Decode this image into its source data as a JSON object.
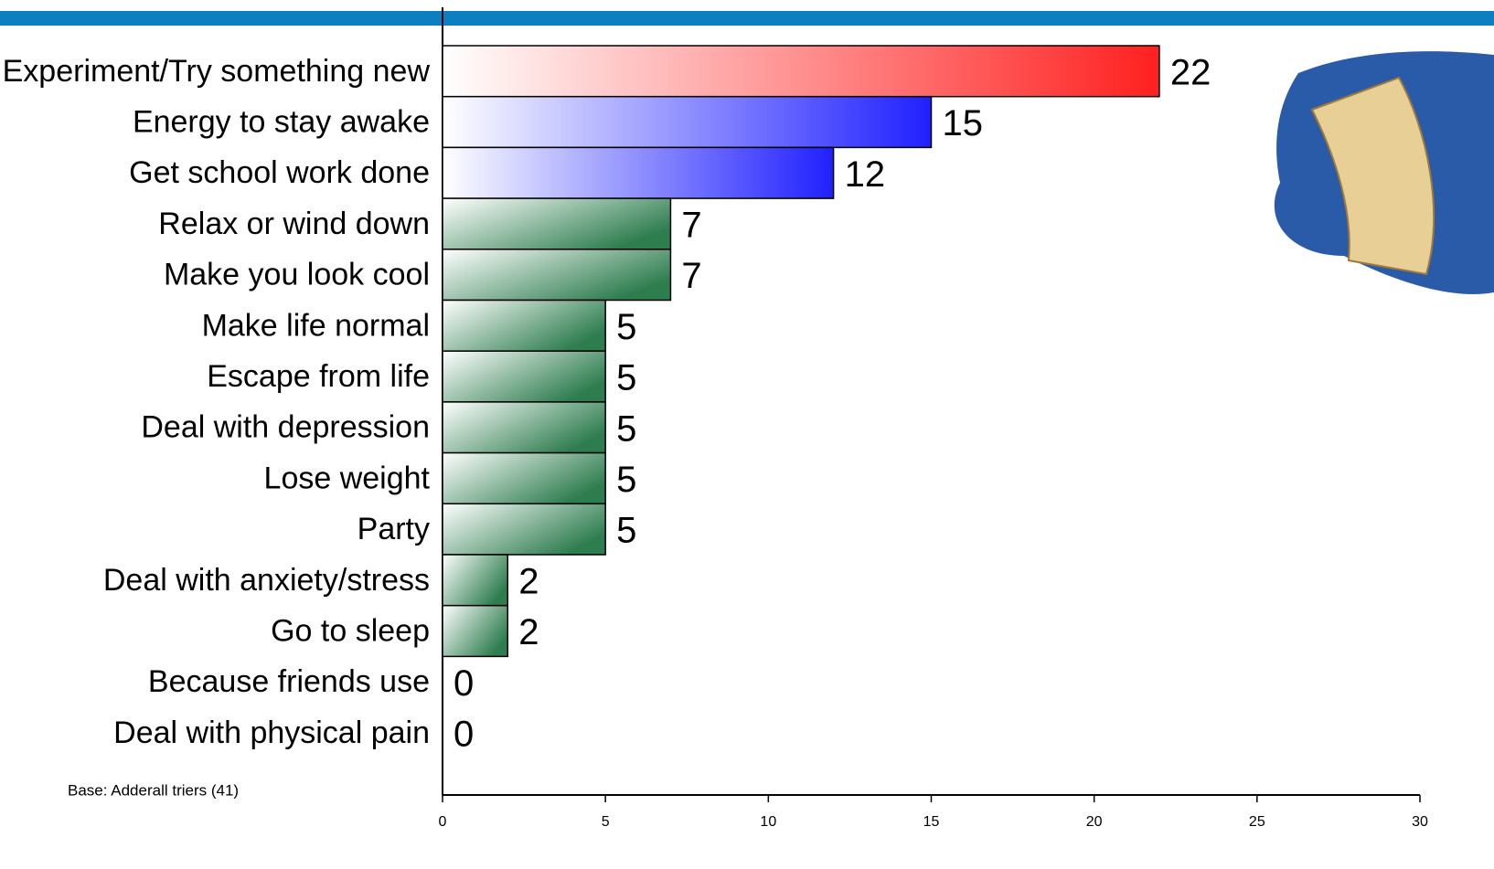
{
  "chart_data": {
    "type": "hbar",
    "categories": [
      "Experiment/Try something new",
      "Energy to stay awake",
      "Get school work done",
      "Relax or wind down",
      "Make you look cool",
      "Make life normal",
      "Escape from life",
      "Deal with depression",
      "Lose weight",
      "Party",
      "Deal with anxiety/stress",
      "Go to sleep",
      "Because friends use",
      "Deal with physical pain"
    ],
    "values": [
      22,
      15,
      12,
      7,
      7,
      5,
      5,
      5,
      5,
      5,
      2,
      2,
      0,
      0
    ],
    "colors": [
      "#ff2020",
      "#2020ff",
      "#2020ff",
      "#2e7d4f",
      "#2e7d4f",
      "#2e7d4f",
      "#2e7d4f",
      "#2e7d4f",
      "#2e7d4f",
      "#2e7d4f",
      "#2e7d4f",
      "#2e7d4f",
      "#2e7d4f",
      "#2e7d4f"
    ],
    "xlim": [
      0,
      30
    ],
    "xticks": [
      0,
      5,
      10,
      15,
      20,
      25,
      30
    ],
    "annotation": "Base: Adderall triers (41)"
  }
}
